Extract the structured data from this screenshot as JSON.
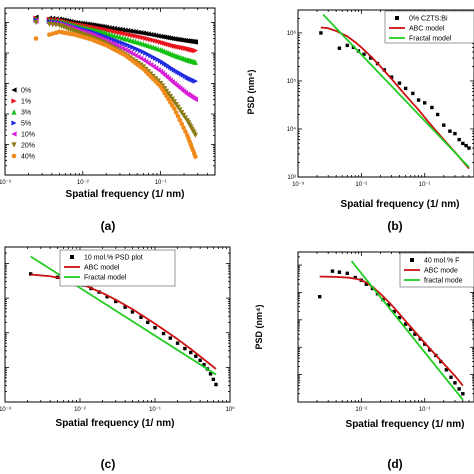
{
  "chart_data": [
    {
      "type": "scatter",
      "panel_label": "(a)",
      "xlabel": "Spatial frequency (1/ nm)",
      "ylabel": "",
      "xscale": "log",
      "yscale": "log",
      "xlim": [
        0.001,
        0.5
      ],
      "ylim": [
        10,
        3000000
      ],
      "grid": false,
      "legend_position": "left",
      "series": [
        {
          "name": "0%",
          "color": "#000000",
          "marker": "triangle-left",
          "x": [
            0.0025,
            0.005,
            0.008,
            0.013,
            0.02,
            0.035,
            0.06,
            0.1,
            0.15,
            0.22,
            0.28
          ],
          "y": [
            1500000,
            1300000,
            1000000,
            850000,
            700000,
            560000,
            450000,
            350000,
            290000,
            250000,
            230000
          ]
        },
        {
          "name": "1%",
          "color": "#e8141b",
          "marker": "triangle-right",
          "x": [
            0.0025,
            0.005,
            0.008,
            0.013,
            0.02,
            0.035,
            0.06,
            0.1,
            0.15,
            0.22,
            0.28
          ],
          "y": [
            1400000,
            1200000,
            900000,
            720000,
            580000,
            430000,
            320000,
            230000,
            170000,
            140000,
            120000
          ]
        },
        {
          "name": "3%",
          "color": "#12c012",
          "marker": "triangle-up",
          "x": [
            0.0025,
            0.005,
            0.008,
            0.013,
            0.02,
            0.035,
            0.06,
            0.1,
            0.15,
            0.22,
            0.28
          ],
          "y": [
            1300000,
            1100000,
            800000,
            600000,
            450000,
            300000,
            200000,
            130000,
            85000,
            60000,
            50000
          ]
        },
        {
          "name": "5%",
          "color": "#1f2ce0",
          "marker": "triangle-right",
          "x": [
            0.0025,
            0.005,
            0.008,
            0.013,
            0.02,
            0.035,
            0.06,
            0.1,
            0.15,
            0.22,
            0.28
          ],
          "y": [
            1200000,
            1000000,
            700000,
            500000,
            340000,
            200000,
            110000,
            55000,
            28000,
            16000,
            12000
          ]
        },
        {
          "name": "10%",
          "color": "#d81ed8",
          "marker": "triangle-left",
          "x": [
            0.0025,
            0.005,
            0.008,
            0.013,
            0.02,
            0.035,
            0.06,
            0.1,
            0.15,
            0.22,
            0.28
          ],
          "y": [
            1100000,
            900000,
            600000,
            400000,
            250000,
            130000,
            60000,
            25000,
            10000,
            4500,
            3000
          ]
        },
        {
          "name": "20%",
          "color": "#8a7a12",
          "marker": "triangle-down",
          "x": [
            0.0025,
            0.005,
            0.008,
            0.013,
            0.02,
            0.035,
            0.06,
            0.1,
            0.15,
            0.22,
            0.28
          ],
          "y": [
            1000000,
            800000,
            500000,
            320000,
            200000,
            90000,
            35000,
            10000,
            2500,
            600,
            200
          ]
        },
        {
          "name": "40%",
          "color": "#f08a1a",
          "marker": "circle",
          "x": [
            0.0025,
            0.005,
            0.008,
            0.013,
            0.02,
            0.035,
            0.06,
            0.1,
            0.15,
            0.22,
            0.28
          ],
          "y": [
            300000,
            500000,
            400000,
            280000,
            180000,
            85000,
            30000,
            8000,
            1500,
            200,
            40
          ]
        }
      ]
    },
    {
      "type": "scatter",
      "panel_label": "(b)",
      "xlabel": "Spatial frequency (1/ nm)",
      "ylabel": "PSD (nm⁴)",
      "xscale": "log",
      "yscale": "log",
      "xlim": [
        0.001,
        0.6
      ],
      "ylim": [
        1000,
        3000000
      ],
      "ytick_labels": [
        "10³",
        "10⁴",
        "10⁵",
        "10⁶"
      ],
      "xtick_labels": [
        "10⁻³",
        "10⁻²",
        "10⁻¹"
      ],
      "grid": false,
      "legend_position": "top-right",
      "legend_entries": [
        "0% CZTS:Bi",
        "ABC model",
        "Fractal model"
      ],
      "series": [
        {
          "name": "0% CZTS:Bi",
          "kind": "points",
          "color": "#000000",
          "x": [
            0.0023,
            0.0045,
            0.006,
            0.0075,
            0.009,
            0.011,
            0.014,
            0.018,
            0.023,
            0.03,
            0.04,
            0.05,
            0.065,
            0.08,
            0.1,
            0.13,
            0.16,
            0.2,
            0.25,
            0.3,
            0.35,
            0.4,
            0.45,
            0.5
          ],
          "y": [
            1000000,
            480000,
            550000,
            500000,
            420000,
            360000,
            300000,
            230000,
            170000,
            120000,
            90000,
            70000,
            55000,
            40000,
            35000,
            28000,
            20000,
            12000,
            9000,
            8000,
            6000,
            5000,
            4500,
            4000
          ]
        },
        {
          "name": "ABC model",
          "kind": "line",
          "color": "#cc1111",
          "x": [
            0.0023,
            0.003,
            0.004,
            0.006,
            0.008,
            0.01,
            0.015,
            0.02,
            0.03,
            0.05,
            0.08,
            0.12,
            0.2,
            0.3,
            0.5
          ],
          "y": [
            1300000,
            1250000,
            1100000,
            850000,
            640000,
            500000,
            300000,
            200000,
            110000,
            50000,
            25000,
            13000,
            6000,
            3300,
            1500
          ]
        },
        {
          "name": "Fractal model",
          "kind": "line",
          "color": "#22cc22",
          "x": [
            0.0025,
            0.5
          ],
          "y": [
            2400000,
            1600
          ]
        }
      ]
    },
    {
      "type": "scatter",
      "panel_label": "(c)",
      "xlabel": "Spatial frequency (1/ nm)",
      "ylabel": "",
      "xscale": "log",
      "yscale": "log",
      "xlim": [
        0.001,
        1
      ],
      "ylim": [
        100,
        3000000
      ],
      "xtick_labels": [
        "10⁻³",
        "10⁻²",
        "10⁻¹",
        "10⁰"
      ],
      "grid": false,
      "legend_position": "top-right",
      "legend_entries": [
        "10 mol.% PSD plot",
        "ABC model",
        "Fractal model"
      ],
      "series": [
        {
          "name": "10 mol.% PSD plot",
          "kind": "points",
          "color": "#000000",
          "x": [
            0.0022,
            0.005,
            0.007,
            0.009,
            0.011,
            0.014,
            0.018,
            0.023,
            0.03,
            0.04,
            0.05,
            0.065,
            0.08,
            0.1,
            0.13,
            0.16,
            0.2,
            0.25,
            0.3,
            0.35,
            0.4,
            0.45,
            0.5,
            0.55,
            0.6,
            0.65
          ],
          "y": [
            500000,
            400000,
            330000,
            280000,
            240000,
            190000,
            150000,
            110000,
            80000,
            55000,
            40000,
            28000,
            20000,
            14000,
            9500,
            7000,
            5000,
            3500,
            2700,
            2100,
            1600,
            1200,
            900,
            650,
            450,
            320
          ]
        },
        {
          "name": "ABC model",
          "kind": "line",
          "color": "#cc1111",
          "x": [
            0.0022,
            0.004,
            0.006,
            0.009,
            0.013,
            0.02,
            0.03,
            0.05,
            0.08,
            0.12,
            0.2,
            0.3,
            0.45,
            0.65
          ],
          "y": [
            480000,
            430000,
            360000,
            280000,
            210000,
            140000,
            90000,
            48000,
            25000,
            14000,
            6500,
            3400,
            1700,
            900
          ]
        },
        {
          "name": "Fractal model",
          "kind": "line",
          "color": "#22cc22",
          "x": [
            0.0022,
            0.65
          ],
          "y": [
            1600000,
            620
          ]
        }
      ]
    },
    {
      "type": "scatter",
      "panel_label": "(d)",
      "xlabel": "Spatial frequency (1/ nm)",
      "ylabel": "PSD (nm⁴)",
      "xscale": "log",
      "yscale": "log",
      "xlim": [
        0.001,
        0.6
      ],
      "ylim": [
        10,
        3000000
      ],
      "grid": false,
      "legend_position": "top-right",
      "legend_entries": [
        "40 mol.% F",
        "ABC mode",
        "fractal mode"
      ],
      "series": [
        {
          "name": "40 mol.% F",
          "kind": "points",
          "color": "#000000",
          "x": [
            0.0022,
            0.0035,
            0.0045,
            0.006,
            0.008,
            0.01,
            0.012,
            0.015,
            0.018,
            0.022,
            0.027,
            0.033,
            0.04,
            0.05,
            0.06,
            0.07,
            0.085,
            0.1,
            0.12,
            0.15,
            0.18,
            0.22,
            0.26,
            0.3,
            0.35,
            0.4
          ],
          "y": [
            70000,
            600000,
            550000,
            500000,
            350000,
            280000,
            200000,
            140000,
            90000,
            55000,
            35000,
            20000,
            12000,
            7000,
            4500,
            3000,
            2000,
            1300,
            800,
            500,
            300,
            150,
            80,
            50,
            30,
            20
          ]
        },
        {
          "name": "ABC mode",
          "kind": "line",
          "color": "#cc1111",
          "x": [
            0.0022,
            0.004,
            0.006,
            0.008,
            0.01,
            0.012,
            0.015,
            0.02,
            0.03,
            0.05,
            0.08,
            0.12,
            0.2,
            0.3,
            0.4
          ],
          "y": [
            380000,
            370000,
            350000,
            320000,
            280000,
            230000,
            160000,
            90000,
            35000,
            9000,
            2600,
            900,
            250,
            90,
            40
          ]
        },
        {
          "name": "fractal mode",
          "kind": "line",
          "color": "#22cc22",
          "x": [
            0.007,
            0.4
          ],
          "y": [
            1400000,
            12
          ]
        }
      ]
    }
  ]
}
